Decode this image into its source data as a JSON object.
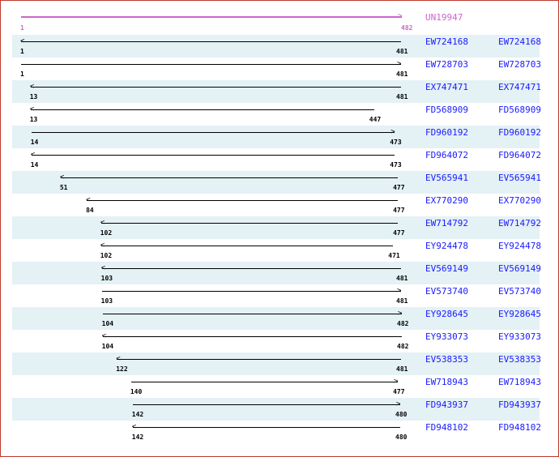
{
  "query": {
    "name": "UN19947",
    "start": 1,
    "end": 482,
    "color": "#cc66cc"
  },
  "colors": {
    "link": "#1a1aff",
    "shade": "#e4f1f5",
    "border": "#c0392b"
  },
  "hits": [
    {
      "id": "EW724168",
      "start": 1,
      "end": 481,
      "dir": "left"
    },
    {
      "id": "EW728703",
      "start": 1,
      "end": 481,
      "dir": "right"
    },
    {
      "id": "EX747471",
      "start": 13,
      "end": 481,
      "dir": "left"
    },
    {
      "id": "FD568909",
      "start": 13,
      "end": 447,
      "dir": "left"
    },
    {
      "id": "FD960192",
      "start": 14,
      "end": 473,
      "dir": "right"
    },
    {
      "id": "FD964072",
      "start": 14,
      "end": 473,
      "dir": "left"
    },
    {
      "id": "EV565941",
      "start": 51,
      "end": 477,
      "dir": "left"
    },
    {
      "id": "EX770290",
      "start": 84,
      "end": 477,
      "dir": "left"
    },
    {
      "id": "EW714792",
      "start": 102,
      "end": 477,
      "dir": "left"
    },
    {
      "id": "EY924478",
      "start": 102,
      "end": 471,
      "dir": "left"
    },
    {
      "id": "EV569149",
      "start": 103,
      "end": 481,
      "dir": "left"
    },
    {
      "id": "EV573740",
      "start": 103,
      "end": 481,
      "dir": "right"
    },
    {
      "id": "EY928645",
      "start": 104,
      "end": 482,
      "dir": "right"
    },
    {
      "id": "EY933073",
      "start": 104,
      "end": 482,
      "dir": "left"
    },
    {
      "id": "EV538353",
      "start": 122,
      "end": 481,
      "dir": "left"
    },
    {
      "id": "EW718943",
      "start": 140,
      "end": 477,
      "dir": "right"
    },
    {
      "id": "FD943937",
      "start": 142,
      "end": 480,
      "dir": "right"
    },
    {
      "id": "FD948102",
      "start": 142,
      "end": 480,
      "dir": "left"
    }
  ]
}
